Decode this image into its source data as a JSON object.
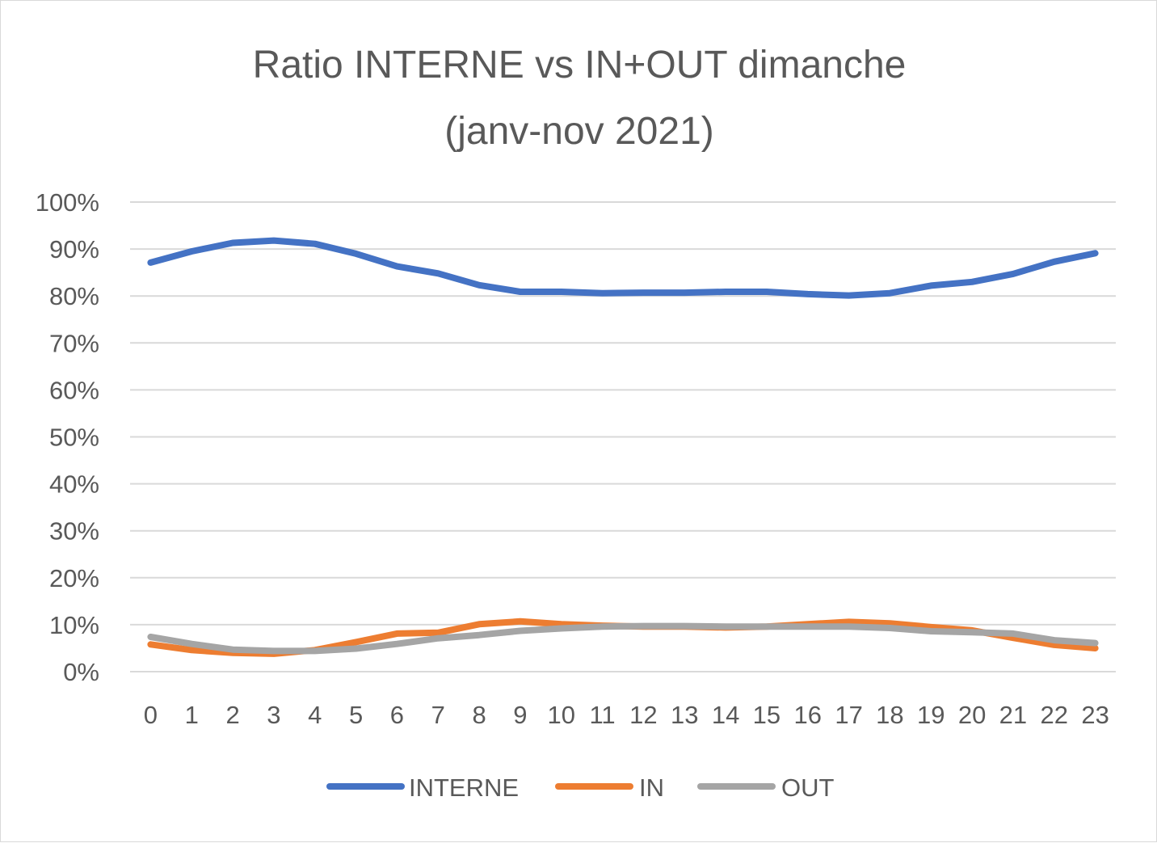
{
  "chart_data": {
    "type": "line",
    "title_line1": "Ratio INTERNE vs IN+OUT  dimanche",
    "title_line2": "(janv-nov 2021)",
    "xlabel": "",
    "ylabel": "",
    "x": [
      "0",
      "1",
      "2",
      "3",
      "4",
      "5",
      "6",
      "7",
      "8",
      "9",
      "10",
      "11",
      "12",
      "13",
      "14",
      "15",
      "16",
      "17",
      "18",
      "19",
      "20",
      "21",
      "22",
      "23"
    ],
    "ylim": [
      0,
      1
    ],
    "yticks": [
      "0%",
      "10%",
      "20%",
      "30%",
      "40%",
      "50%",
      "60%",
      "70%",
      "80%",
      "90%",
      "100%"
    ],
    "grid": true,
    "legend_position": "bottom",
    "series": [
      {
        "name": "INTERNE",
        "color": "#4472c4",
        "values": [
          0.871,
          0.895,
          0.913,
          0.918,
          0.911,
          0.89,
          0.863,
          0.848,
          0.823,
          0.809,
          0.809,
          0.806,
          0.807,
          0.807,
          0.809,
          0.809,
          0.804,
          0.801,
          0.806,
          0.822,
          0.83,
          0.847,
          0.873,
          0.891
        ]
      },
      {
        "name": "IN",
        "color": "#ed7d31",
        "values": [
          0.058,
          0.046,
          0.04,
          0.038,
          0.046,
          0.063,
          0.081,
          0.083,
          0.101,
          0.107,
          0.101,
          0.098,
          0.096,
          0.096,
          0.094,
          0.096,
          0.101,
          0.106,
          0.103,
          0.095,
          0.088,
          0.072,
          0.057,
          0.05
        ]
      },
      {
        "name": "OUT",
        "color": "#a5a5a5",
        "values": [
          0.074,
          0.059,
          0.047,
          0.044,
          0.044,
          0.049,
          0.059,
          0.071,
          0.078,
          0.087,
          0.092,
          0.096,
          0.097,
          0.097,
          0.096,
          0.096,
          0.096,
          0.096,
          0.093,
          0.086,
          0.084,
          0.081,
          0.067,
          0.061
        ]
      }
    ]
  }
}
